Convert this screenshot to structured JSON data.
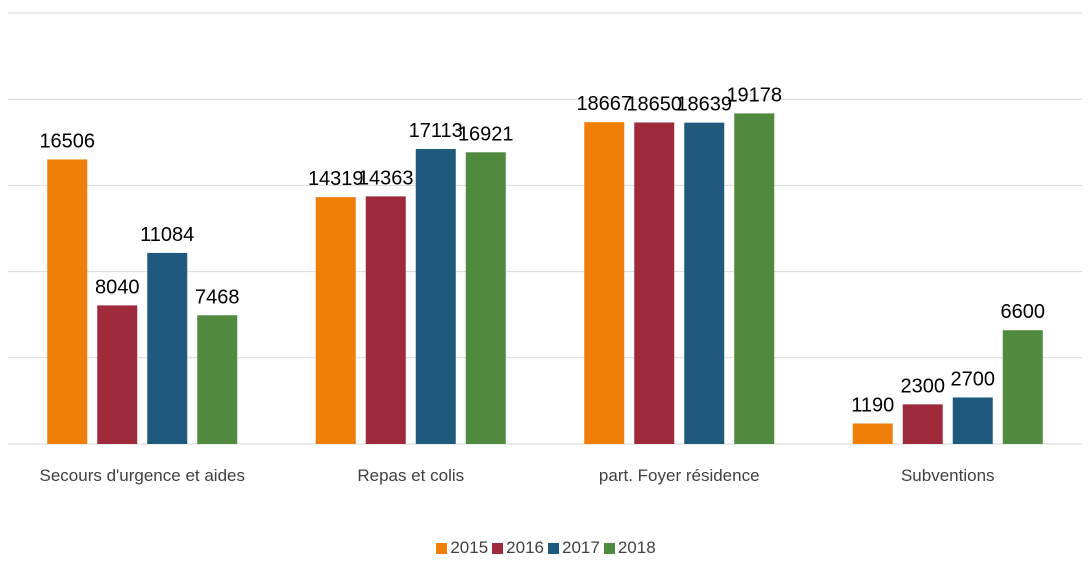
{
  "chart_data": {
    "type": "bar",
    "categories": [
      "Secours d'urgence et aides",
      "Repas et colis",
      "part. Foyer résidence",
      "Subventions"
    ],
    "series": [
      {
        "name": "2015",
        "color": "#f07f09",
        "values": [
          16506,
          14319,
          18667,
          1190
        ]
      },
      {
        "name": "2016",
        "color": "#9e2a3b",
        "values": [
          8040,
          14363,
          18650,
          2300
        ]
      },
      {
        "name": "2017",
        "color": "#1f5a7e",
        "values": [
          11084,
          17113,
          18639,
          2700
        ]
      },
      {
        "name": "2018",
        "color": "#4f8a3f",
        "values": [
          7468,
          16921,
          19178,
          6600
        ]
      }
    ],
    "ylim": [
      0,
      25000
    ],
    "yticks": [
      0,
      5000,
      10000,
      15000,
      20000,
      25000
    ],
    "grid": true
  }
}
